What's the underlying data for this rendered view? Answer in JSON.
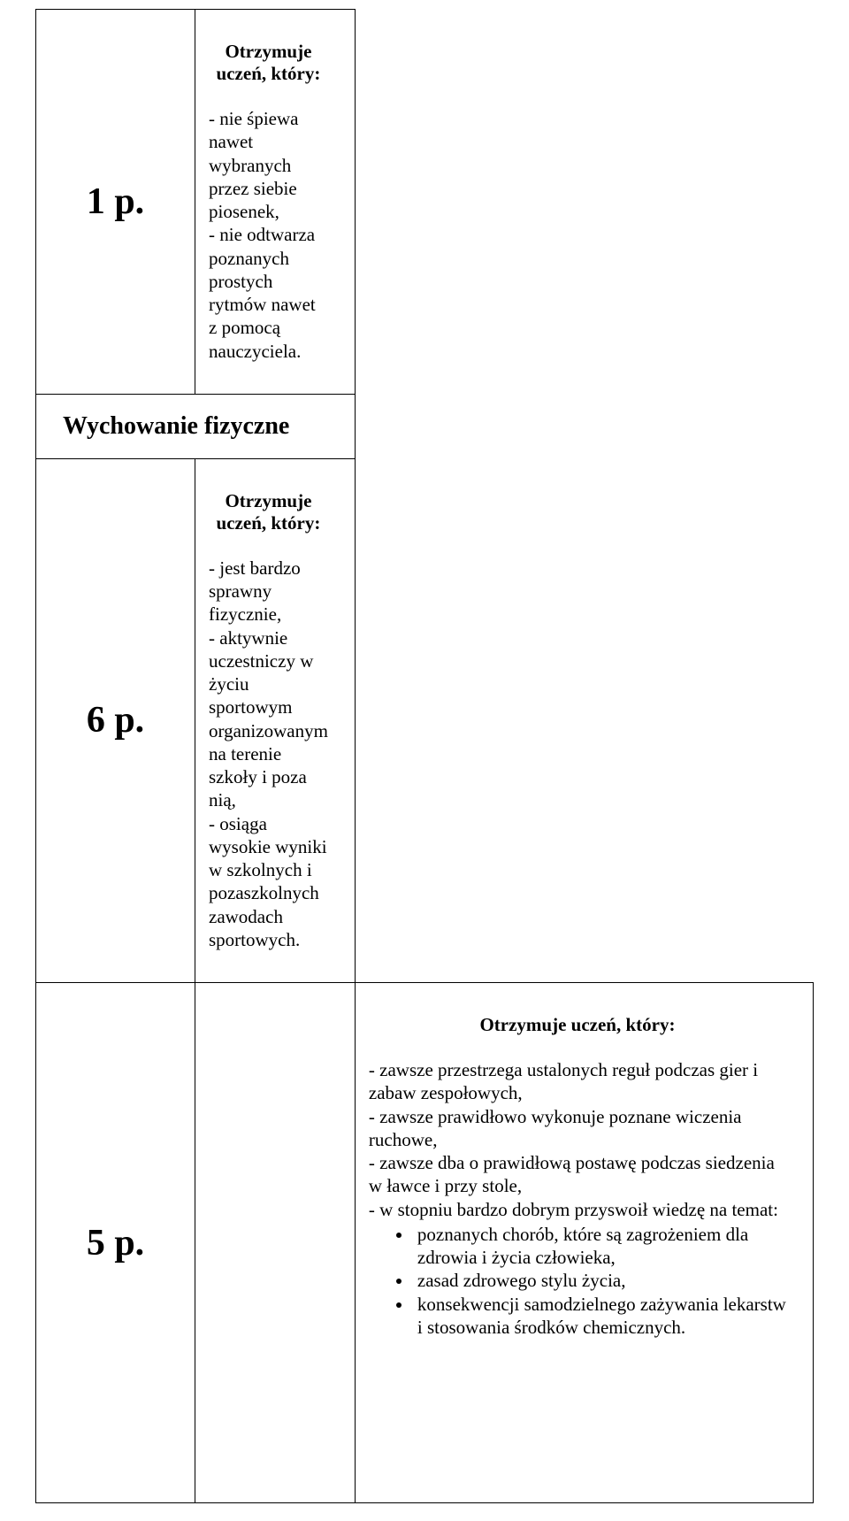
{
  "rows": {
    "r1": {
      "grade": "1 p.",
      "heading": "Otrzymuje uczeń, który:",
      "lines": [
        "- nie śpiewa nawet wybranych przez siebie piosenek,",
        "- nie odtwarza poznanych prostych rytmów nawet z pomocą nauczyciela."
      ]
    },
    "section": {
      "title": "Wychowanie fizyczne"
    },
    "r2": {
      "grade": "6 p.",
      "heading": "Otrzymuje uczeń, który:",
      "lines": [
        "-  jest bardzo sprawny fizycznie,",
        "-  aktywnie uczestniczy w życiu sportowym organizowanym na terenie szkoły i poza nią,",
        "- osiąga wysokie wyniki w szkolnych i pozaszkolnych zawodach sportowych."
      ]
    },
    "r3": {
      "grade": "5 p.",
      "heading": "Otrzymuje uczeń, który:",
      "lines": [
        "- zawsze przestrzega ustalonych reguł podczas gier i zabaw zespołowych,",
        "- zawsze prawidłowo wykonuje poznane wiczenia ruchowe,",
        "- zawsze dba o prawidłową postawę podczas siedzenia w ławce i przy stole,",
        "- w stopniu bardzo dobrym przyswoił wiedzę na temat:"
      ],
      "sub": [
        "poznanych chorób, które są zagrożeniem dla zdrowia i życia człowieka,",
        "zasad zdrowego stylu życia,",
        "konsekwencji samodzielnego zażywania lekarstw i stosowania środków chemicznych."
      ]
    }
  }
}
